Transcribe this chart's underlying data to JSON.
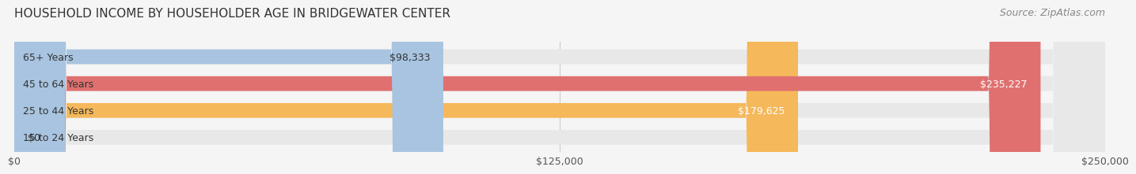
{
  "title": "HOUSEHOLD INCOME BY HOUSEHOLDER AGE IN BRIDGEWATER CENTER",
  "source": "Source: ZipAtlas.com",
  "categories": [
    "15 to 24 Years",
    "25 to 44 Years",
    "45 to 64 Years",
    "65+ Years"
  ],
  "values": [
    0,
    179625,
    235227,
    98333
  ],
  "bar_colors": [
    "#f4a0a8",
    "#f5b85a",
    "#e07070",
    "#a8c4e0"
  ],
  "bar_bg_color": "#f0f0f0",
  "label_texts": [
    "$0",
    "$179,625",
    "$235,227",
    "$98,333"
  ],
  "x_ticks": [
    0,
    125000,
    250000
  ],
  "x_tick_labels": [
    "$0",
    "$125,000",
    "$250,000"
  ],
  "xlim": [
    0,
    250000
  ],
  "background_color": "#f5f5f5",
  "title_fontsize": 11,
  "source_fontsize": 9,
  "bar_label_fontsize": 9,
  "category_fontsize": 9
}
